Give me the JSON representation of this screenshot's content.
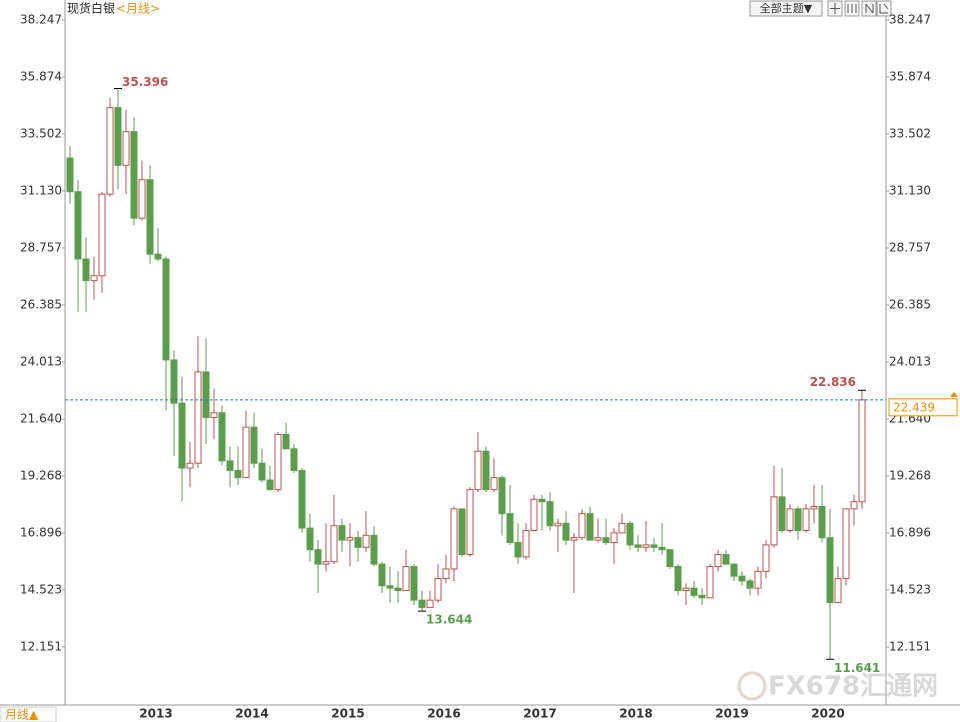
{
  "chart_data": {
    "type": "candlestick",
    "title": "现货白银",
    "subtitle": "<月线>",
    "period_button": "月线▲",
    "theme_button": "全部主题▼",
    "watermark": "FX678汇通网",
    "up_color": "#c0504d",
    "down_color": "#5a9e4b",
    "price_line_color": "#2a7fa8",
    "price_label_color": "#f08c00",
    "grid": false,
    "categories": [
      null,
      null,
      null,
      null,
      null,
      null,
      null,
      null,
      null,
      "2013",
      null,
      null,
      null,
      null,
      null,
      null,
      null,
      null,
      null,
      null,
      null,
      "2014",
      null,
      null,
      null,
      null,
      null,
      null,
      null,
      null,
      null,
      null,
      null,
      "2015",
      null,
      null,
      null,
      null,
      null,
      null,
      null,
      null,
      null,
      null,
      null,
      "2016",
      null,
      null,
      null,
      null,
      null,
      null,
      null,
      null,
      null,
      null,
      null,
      "2017",
      null,
      null,
      null,
      null,
      null,
      null,
      null,
      null,
      null,
      null,
      null,
      "2018",
      null,
      null,
      null,
      null,
      null,
      null,
      null,
      null,
      null,
      null,
      null,
      "2019",
      null,
      null,
      null,
      null,
      null,
      null,
      null,
      null,
      null,
      null,
      null,
      "2020",
      null,
      null,
      null,
      null,
      null,
      null
    ],
    "open": [
      32.5,
      31.1,
      28.3,
      27.4,
      27.6,
      31.0,
      34.6,
      32.2,
      33.6,
      30.0,
      31.6,
      28.5,
      28.3,
      24.1,
      22.3,
      19.6,
      19.8,
      23.6,
      21.7,
      21.9,
      19.9,
      19.5,
      19.2,
      21.3,
      19.8,
      19.1,
      18.7,
      21.0,
      20.4,
      19.5,
      17.1,
      16.2,
      15.6,
      15.7,
      17.2,
      16.6,
      16.7,
      16.3,
      16.8,
      15.6,
      14.7,
      14.6,
      14.5,
      15.5,
      14.1,
      13.8,
      14.1,
      15.0,
      15.4,
      17.9,
      16.0,
      18.7,
      20.3,
      18.7,
      19.2,
      17.7,
      16.5,
      15.9,
      17.0,
      18.3,
      18.2,
      17.2,
      17.3,
      16.6,
      16.7,
      17.7,
      16.6,
      16.7,
      16.5,
      16.9,
      17.3,
      16.4,
      16.3,
      16.4,
      16.3,
      16.2,
      15.5,
      14.5,
      14.6,
      14.3,
      14.2,
      15.5,
      16.0,
      15.6,
      15.1,
      14.9,
      14.6,
      15.3,
      16.4,
      18.4,
      17.0,
      17.9,
      17.0,
      17.9,
      18.0,
      16.7,
      14.0,
      15.0,
      17.9,
      18.2
    ],
    "high": [
      33.0,
      31.6,
      29.2,
      28.4,
      31.1,
      35.0,
      35.396,
      34.5,
      34.2,
      32.4,
      32.2,
      29.6,
      28.4,
      24.5,
      23.4,
      20.7,
      25.1,
      25.0,
      22.9,
      22.2,
      20.5,
      20.5,
      22.0,
      21.9,
      20.4,
      19.7,
      21.1,
      21.5,
      20.6,
      19.6,
      17.7,
      16.6,
      17.3,
      18.5,
      17.5,
      17.3,
      17.0,
      17.8,
      17.2,
      15.7,
      15.5,
      15.3,
      16.2,
      15.6,
      14.5,
      14.5,
      15.6,
      16.0,
      18.0,
      17.9,
      18.8,
      21.1,
      20.5,
      20.0,
      19.3,
      18.9,
      17.3,
      17.3,
      18.5,
      18.5,
      18.6,
      17.5,
      17.8,
      16.9,
      17.9,
      18.0,
      17.5,
      17.5,
      17.1,
      17.7,
      17.4,
      16.8,
      17.4,
      16.7,
      17.3,
      16.2,
      15.6,
      14.8,
      14.9,
      14.6,
      15.6,
      16.2,
      16.2,
      15.6,
      15.3,
      15.0,
      15.5,
      16.6,
      19.7,
      19.6,
      18.1,
      18.0,
      18.1,
      18.9,
      18.9,
      17.9,
      15.5,
      17.9,
      18.5,
      22.836
    ],
    "low": [
      30.6,
      26.1,
      26.1,
      26.6,
      26.9,
      30.9,
      31.2,
      31.0,
      29.7,
      29.9,
      28.1,
      28.2,
      22.0,
      20.1,
      18.2,
      18.8,
      19.6,
      20.6,
      20.8,
      19.7,
      18.8,
      18.9,
      19.2,
      19.6,
      19.0,
      18.7,
      18.6,
      20.4,
      19.4,
      16.9,
      15.7,
      14.4,
      15.3,
      15.6,
      16.1,
      15.5,
      15.7,
      16.1,
      15.5,
      14.4,
      14.0,
      14.0,
      14.5,
      13.9,
      13.644,
      13.8,
      14.0,
      14.8,
      14.9,
      15.9,
      15.9,
      18.6,
      18.6,
      18.6,
      16.8,
      16.4,
      15.6,
      15.8,
      17.0,
      17.0,
      17.0,
      16.1,
      16.4,
      14.4,
      16.6,
      16.6,
      16.5,
      16.4,
      15.6,
      16.9,
      16.2,
      16.1,
      16.1,
      16.1,
      16.0,
      15.4,
      14.3,
      13.9,
      14.2,
      13.9,
      14.2,
      15.3,
      15.6,
      14.9,
      14.7,
      14.3,
      14.3,
      15.0,
      16.3,
      16.9,
      16.9,
      16.6,
      16.9,
      17.3,
      16.5,
      11.641,
      14.0,
      14.7,
      17.2,
      17.9
    ],
    "close": [
      31.1,
      28.3,
      27.4,
      27.6,
      31.0,
      34.6,
      32.2,
      33.6,
      30.0,
      31.6,
      28.5,
      28.3,
      24.1,
      22.3,
      19.6,
      19.8,
      23.6,
      21.7,
      21.9,
      19.9,
      19.5,
      19.2,
      21.3,
      19.8,
      19.1,
      18.7,
      21.0,
      20.4,
      19.5,
      17.1,
      16.2,
      15.6,
      15.7,
      17.2,
      16.6,
      16.7,
      16.3,
      16.8,
      15.6,
      14.7,
      14.6,
      14.5,
      15.5,
      14.1,
      13.8,
      14.1,
      15.0,
      15.4,
      17.9,
      16.0,
      18.7,
      20.3,
      18.7,
      19.2,
      17.7,
      16.5,
      15.9,
      17.0,
      18.3,
      18.2,
      17.2,
      17.3,
      16.6,
      16.7,
      17.7,
      16.6,
      16.7,
      16.5,
      16.9,
      17.3,
      16.4,
      16.3,
      16.4,
      16.3,
      16.2,
      15.5,
      14.5,
      14.6,
      14.3,
      14.2,
      15.5,
      16.0,
      15.6,
      15.1,
      14.9,
      14.6,
      15.3,
      16.4,
      18.4,
      17.0,
      17.9,
      17.0,
      17.9,
      18.0,
      16.7,
      14.0,
      15.0,
      17.9,
      18.2,
      22.439
    ],
    "ylim": [
      9.737,
      39.08
    ],
    "yticks": [
      38.247,
      35.874,
      33.502,
      {
        "value": 31.13,
        "label": "31.130"
      },
      28.757,
      26.385,
      24.013,
      {
        "value": 21.64,
        "label": "21.640"
      },
      19.268,
      16.896,
      14.523,
      12.151
    ]
  }
}
